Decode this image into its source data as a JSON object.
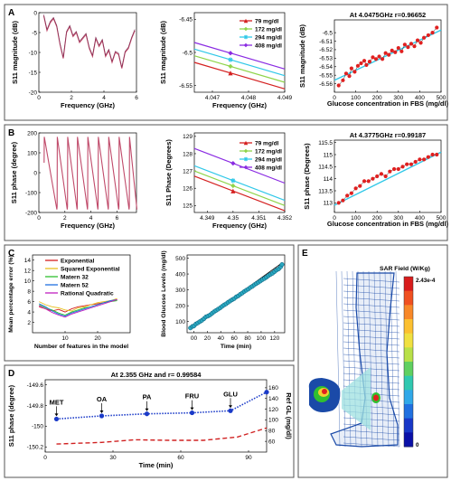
{
  "panels": {
    "A": "A",
    "B": "B",
    "C": "C",
    "D": "D",
    "E": "E"
  },
  "chart_data": [
    {
      "id": "A1",
      "type": "line",
      "xlabel": "Frequency (GHz)",
      "ylabel": "S11 magnitude (dB)",
      "xlim": [
        0,
        6
      ],
      "ylim": [
        -20,
        0
      ],
      "xticks": [
        0,
        2,
        4,
        6
      ],
      "yticks": [
        0,
        -5,
        -10,
        -15,
        -20
      ],
      "color": "#c04a6a",
      "x": [
        0.3,
        0.5,
        0.7,
        0.9,
        1.1,
        1.3,
        1.5,
        1.7,
        1.9,
        2.1,
        2.3,
        2.5,
        2.7,
        2.9,
        3.1,
        3.3,
        3.5,
        3.7,
        3.9,
        4.1,
        4.3,
        4.5,
        4.7,
        4.9,
        5.1,
        5.3,
        5.5,
        5.7,
        5.9
      ],
      "y": [
        -0.8,
        -4.5,
        -2.5,
        -1.5,
        -3.5,
        -8.0,
        -11.5,
        -5.0,
        -3.5,
        -6.0,
        -5.0,
        -7.5,
        -6.5,
        -5.5,
        -9.0,
        -11.0,
        -6.5,
        -8.5,
        -7.0,
        -11.0,
        -9.5,
        -12.5,
        -10.0,
        -10.5,
        -14.0,
        -10.0,
        -9.0,
        -6.5,
        -4.5
      ]
    },
    {
      "id": "A2",
      "type": "line",
      "xlabel": "Frequency (GHz)",
      "ylabel": "S11 magnitude (dB)",
      "xlim": [
        4.0465,
        4.049
      ],
      "ylim": [
        -6.56,
        -6.44
      ],
      "xticks": [
        4.047,
        4.048,
        4.049
      ],
      "yticks": [
        -6.45,
        -6.5,
        -6.55
      ],
      "series": [
        {
          "name": "79 mg/dl",
          "color": "#d42020",
          "marker": "triangle",
          "x": [
            4.0465,
            4.049
          ],
          "y": [
            -6.515,
            -6.555
          ]
        },
        {
          "name": "172 mg/dl",
          "color": "#8fd44a",
          "marker": "diamond",
          "x": [
            4.0465,
            4.049
          ],
          "y": [
            -6.505,
            -6.545
          ]
        },
        {
          "name": "294 mg/dl",
          "color": "#30c8e8",
          "marker": "star",
          "x": [
            4.0465,
            4.049
          ],
          "y": [
            -6.495,
            -6.535
          ]
        },
        {
          "name": "408 mg/dl",
          "color": "#8a2be2",
          "marker": "diamond",
          "x": [
            4.0465,
            4.049
          ],
          "y": [
            -6.485,
            -6.525
          ]
        }
      ]
    },
    {
      "id": "A3",
      "type": "scatter",
      "title": "At 4.0475GHz r=0.96652",
      "xlabel": "Glucose concentration in FBS (mg/dl)",
      "ylabel": "S11 magnitude (dB)",
      "xlim": [
        0,
        500
      ],
      "ylim": [
        -6.57,
        -6.485
      ],
      "xticks": [
        0,
        100,
        200,
        300,
        400,
        500
      ],
      "yticks": [
        -6.5,
        -6.51,
        -6.52,
        -6.53,
        -6.54,
        -6.55,
        -6.56
      ],
      "x": [
        20,
        40,
        55,
        70,
        80,
        95,
        110,
        125,
        140,
        150,
        165,
        180,
        195,
        210,
        225,
        240,
        255,
        270,
        285,
        300,
        315,
        330,
        345,
        360,
        375,
        390,
        405,
        420,
        440,
        460,
        480
      ],
      "y": [
        -6.562,
        -6.556,
        -6.548,
        -6.551,
        -6.542,
        -6.546,
        -6.539,
        -6.536,
        -6.533,
        -6.538,
        -6.534,
        -6.529,
        -6.531,
        -6.528,
        -6.531,
        -6.524,
        -6.526,
        -6.521,
        -6.523,
        -6.518,
        -6.522,
        -6.514,
        -6.517,
        -6.513,
        -6.516,
        -6.509,
        -6.512,
        -6.506,
        -6.503,
        -6.5,
        -6.494
      ],
      "fit": [
        [
          0,
          -6.556
        ],
        [
          500,
          -6.497
        ]
      ]
    },
    {
      "id": "B1",
      "type": "line",
      "xlabel": "Frequency (GHz)",
      "ylabel": "S11 phase (degree)",
      "xlim": [
        0,
        7.5
      ],
      "ylim": [
        -200,
        200
      ],
      "xticks": [
        0,
        2,
        4,
        6
      ],
      "yticks": [
        200,
        100,
        0,
        -100,
        -200
      ],
      "color": "#c04a6a",
      "periods": [
        0.4,
        1.4,
        2.2,
        2.95,
        3.75,
        4.55,
        5.35,
        6.15,
        6.95,
        7.55
      ]
    },
    {
      "id": "B2",
      "type": "line",
      "xlabel": "Frequency (GHz)",
      "ylabel": "S11 Phase (Degrees)",
      "xlim": [
        4.3485,
        4.352
      ],
      "ylim": [
        124.6,
        129.2
      ],
      "xticks": [
        4.349,
        4.35,
        4.351,
        4.352
      ],
      "yticks": [
        125,
        126,
        127,
        128,
        129
      ],
      "series": [
        {
          "name": "79 mg/dl",
          "color": "#d42020",
          "marker": "triangle",
          "x": [
            4.3485,
            4.352
          ],
          "y": [
            126.7,
            124.7
          ]
        },
        {
          "name": "172 mg/dl",
          "color": "#8fd44a",
          "marker": "diamond",
          "x": [
            4.3485,
            4.352
          ],
          "y": [
            127.0,
            125.0
          ]
        },
        {
          "name": "294 mg/dl",
          "color": "#30c8e8",
          "marker": "star",
          "x": [
            4.3485,
            4.352
          ],
          "y": [
            127.3,
            125.3
          ]
        },
        {
          "name": "408 mg/dl",
          "color": "#8a2be2",
          "marker": "diamond",
          "x": [
            4.3485,
            4.352
          ],
          "y": [
            128.3,
            126.3
          ]
        }
      ]
    },
    {
      "id": "B3",
      "type": "scatter",
      "title": "At 4.3775GHz r=0.99187",
      "xlabel": "Glucose concentration in FBS (mg/dl)",
      "ylabel": "S11 phase (Degrees)",
      "xlim": [
        0,
        500
      ],
      "ylim": [
        112.6,
        115.6
      ],
      "xticks": [
        0,
        100,
        200,
        300,
        400,
        500
      ],
      "yticks": [
        113,
        113.5,
        114,
        114.5,
        115,
        115.5
      ],
      "x": [
        20,
        40,
        60,
        80,
        100,
        120,
        140,
        160,
        180,
        200,
        220,
        240,
        260,
        280,
        300,
        320,
        340,
        360,
        380,
        400,
        420,
        440,
        460,
        480
      ],
      "y": [
        113.0,
        113.1,
        113.3,
        113.4,
        113.6,
        113.7,
        113.9,
        113.9,
        114.0,
        114.1,
        114.2,
        114.1,
        114.3,
        114.4,
        114.4,
        114.5,
        114.6,
        114.6,
        114.7,
        114.8,
        114.8,
        114.9,
        115.0,
        115.0
      ],
      "fit": [
        [
          0,
          112.9
        ],
        [
          500,
          115.1
        ]
      ]
    },
    {
      "id": "C1",
      "type": "line",
      "xlabel": "Number of features in the model",
      "ylabel": "Mean percentage error (%)",
      "xlim": [
        0,
        30
      ],
      "ylim": [
        0,
        15
      ],
      "xticks": [
        10,
        20
      ],
      "yticks": [
        2,
        4,
        6,
        8,
        10,
        12,
        14
      ],
      "series": [
        {
          "name": "Exponential",
          "color": "#d42020",
          "x": [
            2,
            4,
            6,
            8,
            10,
            12,
            14,
            16,
            18,
            20,
            22,
            24,
            26
          ],
          "y": [
            5.0,
            4.6,
            4.2,
            4.5,
            4.0,
            4.6,
            5.0,
            5.2,
            5.4,
            5.6,
            5.8,
            6.0,
            6.4
          ]
        },
        {
          "name": "Squared Exponential",
          "color": "#e8c020",
          "x": [
            2,
            4,
            6,
            8,
            10,
            12,
            14,
            16,
            18,
            20,
            22,
            24,
            26
          ],
          "y": [
            6.0,
            5.4,
            5.0,
            4.8,
            4.4,
            4.2,
            4.8,
            5.0,
            5.4,
            5.8,
            6.0,
            6.2,
            6.6
          ]
        },
        {
          "name": "Matern 32",
          "color": "#30c030",
          "x": [
            2,
            4,
            6,
            8,
            10,
            12,
            14,
            16,
            18,
            20,
            22,
            24,
            26
          ],
          "y": [
            5.4,
            4.8,
            4.4,
            3.8,
            3.4,
            4.0,
            4.4,
            4.8,
            5.0,
            5.4,
            5.8,
            6.0,
            6.2
          ]
        },
        {
          "name": "Matern 52",
          "color": "#2070e0",
          "x": [
            2,
            4,
            6,
            8,
            10,
            12,
            14,
            16,
            18,
            20,
            22,
            24,
            26
          ],
          "y": [
            5.6,
            5.0,
            4.2,
            3.6,
            3.2,
            3.8,
            4.2,
            4.6,
            5.0,
            5.4,
            5.8,
            6.2,
            6.4
          ]
        },
        {
          "name": "Rational Quadratic",
          "color": "#c020c0",
          "x": [
            2,
            4,
            6,
            8,
            10,
            12,
            14,
            16,
            18,
            20,
            22,
            24,
            26
          ],
          "y": [
            5.2,
            4.6,
            3.9,
            3.4,
            3.0,
            3.6,
            4.0,
            4.4,
            4.8,
            5.2,
            5.6,
            6.0,
            6.4
          ]
        }
      ]
    },
    {
      "id": "C2",
      "type": "scatter",
      "xlabel": "Time (min)",
      "ylabel": "Blood Glucose Levels (mg/dl)",
      "xlim": [
        -10,
        135
      ],
      "ylim": [
        30,
        520
      ],
      "xticks": [
        0,
        20,
        40,
        60,
        80,
        100,
        120
      ],
      "xtick_labels": [
        "00",
        "20",
        "40",
        "60",
        "80",
        "100",
        "120"
      ],
      "yticks": [
        100,
        200,
        300,
        400,
        500
      ],
      "x": [
        -5,
        -2,
        0,
        3,
        6,
        9,
        12,
        15,
        18,
        21,
        24,
        27,
        30,
        33,
        36,
        39,
        42,
        45,
        48,
        51,
        54,
        57,
        60,
        63,
        66,
        69,
        72,
        75,
        78,
        81,
        84,
        87,
        90,
        93,
        96,
        99,
        102,
        105,
        108,
        111,
        114,
        117,
        120,
        123,
        126,
        129,
        131
      ],
      "y": [
        60,
        70,
        72,
        85,
        92,
        100,
        108,
        118,
        130,
        135,
        142,
        152,
        162,
        170,
        178,
        186,
        196,
        205,
        212,
        222,
        230,
        238,
        245,
        256,
        262,
        272,
        280,
        290,
        298,
        305,
        315,
        322,
        332,
        340,
        348,
        356,
        365,
        372,
        380,
        390,
        398,
        405,
        415,
        425,
        432,
        445,
        460
      ],
      "fit": [
        [
          -5,
          55
        ],
        [
          131,
          470
        ]
      ]
    },
    {
      "id": "D",
      "type": "line",
      "title": "At  2.355 GHz and r= 0.99584",
      "xlabel": "Time (min)",
      "ylabel": "S11 phase (degree)",
      "y2label": "Ref GL (mg/dl)",
      "xlim": [
        0,
        98
      ],
      "ylim": [
        -150.25,
        -149.55
      ],
      "y2lim": [
        40,
        175
      ],
      "xticks": [
        0,
        30,
        60,
        90
      ],
      "yticks": [
        -149.6,
        -149.8,
        -150.0,
        -150.2
      ],
      "ytick_labels": [
        "-149.6",
        "-149.8",
        "-150",
        "-150.2"
      ],
      "y2ticks": [
        60,
        80,
        100,
        120,
        140,
        160
      ],
      "series": [
        {
          "name": "S11 phase",
          "axis": "left",
          "color": "#1a3ac8",
          "x": [
            5,
            25,
            45,
            65,
            82,
            98
          ],
          "y": [
            -149.93,
            -149.9,
            -149.88,
            -149.87,
            -149.85,
            -149.67
          ]
        },
        {
          "name": "Ref GL",
          "axis": "right",
          "color": "#d02020",
          "x": [
            5,
            25,
            40,
            55,
            70,
            85,
            98
          ],
          "y": [
            55,
            58,
            63,
            62,
            62,
            68,
            85
          ]
        }
      ],
      "annotations": [
        {
          "text": "MET",
          "x": 5
        },
        {
          "text": "OA",
          "x": 25
        },
        {
          "text": "PA",
          "x": 45
        },
        {
          "text": "FRU",
          "x": 65
        },
        {
          "text": "GLU",
          "x": 82
        }
      ]
    }
  ],
  "E": {
    "colorbar_title": "SAR Field (W/Kg)",
    "colorbar_max": "2.43e-4",
    "colorbar_min": "0",
    "colors": [
      "#d81c1c",
      "#f05020",
      "#f88828",
      "#fcc030",
      "#f0e040",
      "#b8e048",
      "#60d060",
      "#30c8b0",
      "#30a8e8",
      "#2070e0",
      "#1838c8",
      "#0a10a8"
    ],
    "figure_color": "#1a4aa8",
    "hotspot_colors": [
      "#e02020",
      "#f0d030",
      "#30c030"
    ]
  }
}
